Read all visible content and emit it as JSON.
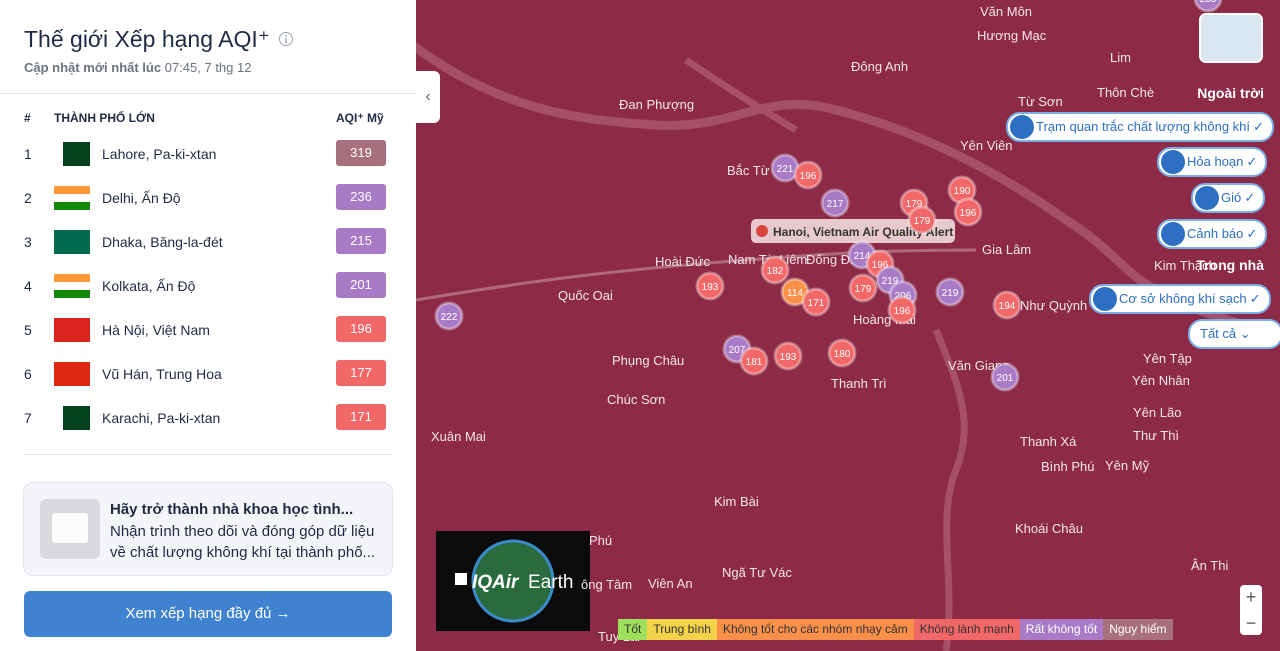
{
  "header": {
    "title": "Thế giới Xếp hạng AQI⁺",
    "updated_prefix": "Cập nhật mới nhất lúc",
    "updated_time": "07:45, 7 thg 12"
  },
  "table": {
    "headers": [
      "#",
      "THÀNH PHỐ LỚN",
      "AQI⁺ Mỹ"
    ],
    "rows": [
      {
        "rank": 1,
        "city": "Lahore, Pa-ki-xtan",
        "aqi": 319
      },
      {
        "rank": 2,
        "city": "Delhi, Ấn Độ",
        "aqi": 236
      },
      {
        "rank": 3,
        "city": "Dhaka, Băng-la-đét",
        "aqi": 215
      },
      {
        "rank": 4,
        "city": "Kolkata, Ấn Độ",
        "aqi": 201
      },
      {
        "rank": 5,
        "city": "Hà Nội, Việt Nam",
        "aqi": 196
      },
      {
        "rank": 6,
        "city": "Vũ Hán, Trung Hoa",
        "aqi": 177
      },
      {
        "rank": 7,
        "city": "Karachi, Pa-ki-xtan",
        "aqi": 171
      }
    ]
  },
  "promo": {
    "title": "Hãy trở thành nhà khoa học tình...",
    "text": "Nhận trình theo dõi và đóng góp dữ liệu về chất lượng không khí tại thành phố..."
  },
  "button": "Xem xếp hạng đầy đủ",
  "map": {
    "alert": "Hanoi, Vietnam Air Quality Alert",
    "places": [
      "Văn Môn",
      "Hương Mạc",
      "Lim",
      "Đông Anh",
      "Đan Phượng",
      "Thôn Chè",
      "Từ Sơn",
      "Yên Viên",
      "Bắc Từ Liêm",
      "Hoài Đức",
      "Nam Từ Liêm",
      "Đống Đa",
      "Gia Lâm",
      "Kim Thạch",
      "Quốc Oai",
      "Như Quỳnh",
      "Hoàng Mai",
      "Phụng Châu",
      "Văn Giang",
      "Yên Tập",
      "Yên Nhân",
      "Thanh Trì",
      "Chúc Sơn",
      "Yên Lão",
      "Thư Thì",
      "Xuân Mai",
      "Thanh Xá",
      "Bình Phú",
      "Yên Mỹ",
      "Kim Bài",
      "Khoái Châu",
      "Phú",
      "Ngã Tư Vác",
      "Ân Thi",
      "Viên An",
      "ông Tâm",
      "Tuy Lai"
    ],
    "markers": [
      233,
      221,
      196,
      217,
      179,
      179,
      190,
      196,
      182,
      214,
      196,
      219,
      206,
      196,
      219,
      114,
      171,
      179,
      193,
      207,
      181,
      193,
      180,
      194,
      201,
      222
    ],
    "sections": [
      "Ngoài trời",
      "Trong nhà"
    ],
    "toggles": [
      "Trạm quan trắc chất lượng không khí",
      "Hỏa hoạn",
      "Gió",
      "Cảnh báo",
      "Cơ sở không khí sạch"
    ],
    "filter": "Tất cả",
    "legend": [
      "Tốt",
      "Trung bình",
      "Không tốt cho các nhóm nhạy cảm",
      "Không lành mạnh",
      "Rất không tốt",
      "Nguy hiểm"
    ],
    "earth": {
      "brand": "IQAir",
      "product": "Earth"
    }
  }
}
